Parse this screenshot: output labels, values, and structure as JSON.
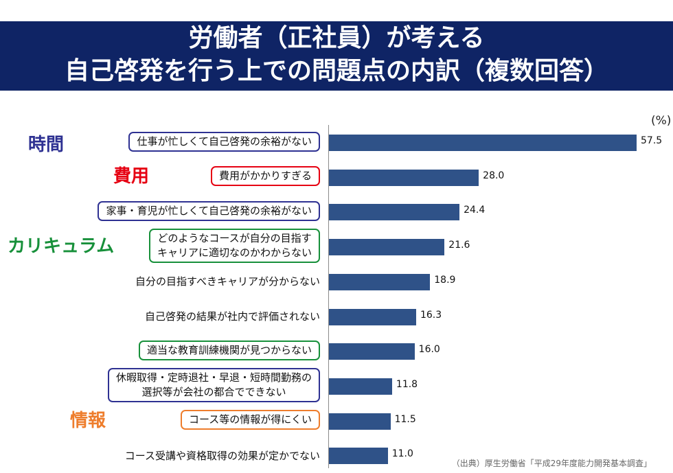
{
  "header": {
    "title_line1": "労働者（正社員）が考える",
    "title_line2": "自己啓発を行う上での問題点の内訳（複数回答）"
  },
  "categories": [
    {
      "label": "時間",
      "color": "#2e3192"
    },
    {
      "label": "費用",
      "color": "#e60012"
    },
    {
      "label": "カリキュラム",
      "color": "#17903a"
    },
    {
      "label": "情報",
      "color": "#ee7d2c"
    }
  ],
  "colors": {
    "bar": "#2f5288",
    "header": "#0f2465"
  },
  "chart_data": {
    "type": "bar",
    "orientation": "horizontal",
    "unit": "(%)",
    "categories": [
      "仕事が忙しくて自己啓発の余裕がない",
      "費用がかかりすぎる",
      "家事・育児が忙しくて自己啓発の余裕がない",
      "どのようなコースが自分の目指すキャリアに適切なのかわからない",
      "自分の目指すべきキャリアが分からない",
      "自己啓発の結果が社内で評価されない",
      "適当な教育訓練機関が見つからない",
      "休暇取得・定時退社・早退・短時間勤務の選択等が会社の都合でできない",
      "コース等の情報が得にくい",
      "コース受講や資格取得の効果が定かでない"
    ],
    "label_lines": [
      [
        "仕事が忙しくて自己啓発の余裕がない"
      ],
      [
        "費用がかかりすぎる"
      ],
      [
        "家事・育児が忙しくて自己啓発の余裕がない"
      ],
      [
        "どのようなコースが自分の目指す",
        "キャリアに適切なのかわからない"
      ],
      [
        "自分の目指すべきキャリアが分からない"
      ],
      [
        "自己啓発の結果が社内で評価されない"
      ],
      [
        "適当な教育訓練機関が見つからない"
      ],
      [
        "休暇取得・定時退社・早退・短時間勤務の",
        "選択等が会社の都合でできない"
      ],
      [
        "コース等の情報が得にくい"
      ],
      [
        "コース受講や資格取得の効果が定かでない"
      ]
    ],
    "values": [
      57.5,
      28.0,
      24.4,
      21.6,
      18.9,
      16.3,
      16.0,
      11.8,
      11.5,
      11.0
    ],
    "value_labels": [
      "57.5",
      "28.0",
      "24.4",
      "21.6",
      "18.9",
      "16.3",
      "16.0",
      "11.8",
      "11.5",
      "11.0"
    ],
    "label_boxes": [
      "#2e3192",
      "#e60012",
      "#2e3192",
      "#17903a",
      null,
      null,
      "#17903a",
      "#2e3192",
      "#ee7d2c",
      null
    ],
    "xlim": [
      0,
      57.5
    ],
    "grid": false,
    "legend": "none"
  },
  "source": "（出典）厚生労働省「平成29年度能力開発基本調査」"
}
